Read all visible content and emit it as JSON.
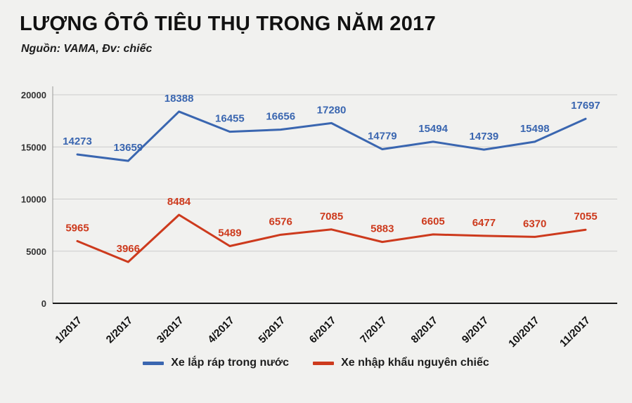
{
  "header": {
    "title": "LƯỢNG ÔTÔ TIÊU THỤ TRONG NĂM 2017",
    "subtitle": "Nguồn: VAMA, Đv: chiếc"
  },
  "chart_data": {
    "type": "line",
    "categories": [
      "1/2017",
      "2/2017",
      "3/2017",
      "4/2017",
      "5/2017",
      "6/2017",
      "7/2017",
      "8/2017",
      "9/2017",
      "10/2017",
      "11/2017"
    ],
    "series": [
      {
        "name": "Xe lắp ráp trong nước",
        "color": "#3a66b0",
        "values": [
          14273,
          13659,
          18388,
          16455,
          16656,
          17280,
          14779,
          15494,
          14739,
          15498,
          17697
        ]
      },
      {
        "name": "Xe nhập khẩu nguyên chiếc",
        "color": "#cd3a1d",
        "values": [
          5965,
          3966,
          8484,
          5489,
          6576,
          7085,
          5883,
          6605,
          6477,
          6370,
          7055
        ]
      }
    ],
    "ylim": [
      0,
      20000
    ],
    "yticks": [
      0,
      5000,
      10000,
      15000,
      20000
    ],
    "grid": true,
    "legend_position": "bottom"
  }
}
